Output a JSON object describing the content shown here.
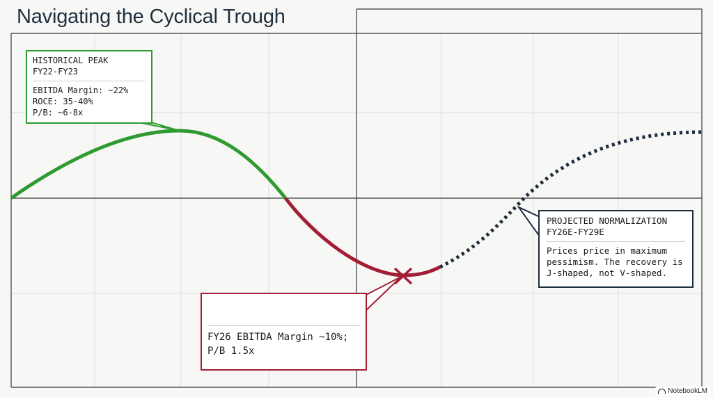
{
  "title": "Navigating the Cyclical Trough",
  "peak_callout": {
    "heading": [
      "HISTORICAL PEAK",
      "FY22-FY23"
    ],
    "lines": [
      "EBITDA Margin: ~22%",
      "ROCE: 35-40%",
      "P/B: ~6-8x"
    ]
  },
  "trough_callout": {
    "lines": [
      "FY26 EBITDA Margin ~10%;",
      "P/B 1.5x"
    ]
  },
  "projection_callout": {
    "heading": [
      "PROJECTED NORMALIZATION",
      "FY26E-FY29E"
    ],
    "lines": [
      "Prices price in maximum",
      "pessimism. The recovery is",
      "J-shaped, not V-shaped."
    ]
  },
  "brand": {
    "label": "NotebookLM"
  },
  "colors": {
    "peak": "#2f9a2f",
    "trough": "#a31e35",
    "projection": "#1e2d3d",
    "grid": "#d9d9d9",
    "axis": "#3a3a3a"
  },
  "icons": {
    "trough_marker": "cross-marker-icon",
    "brand_logo": "notebooklm-logo-icon"
  }
}
